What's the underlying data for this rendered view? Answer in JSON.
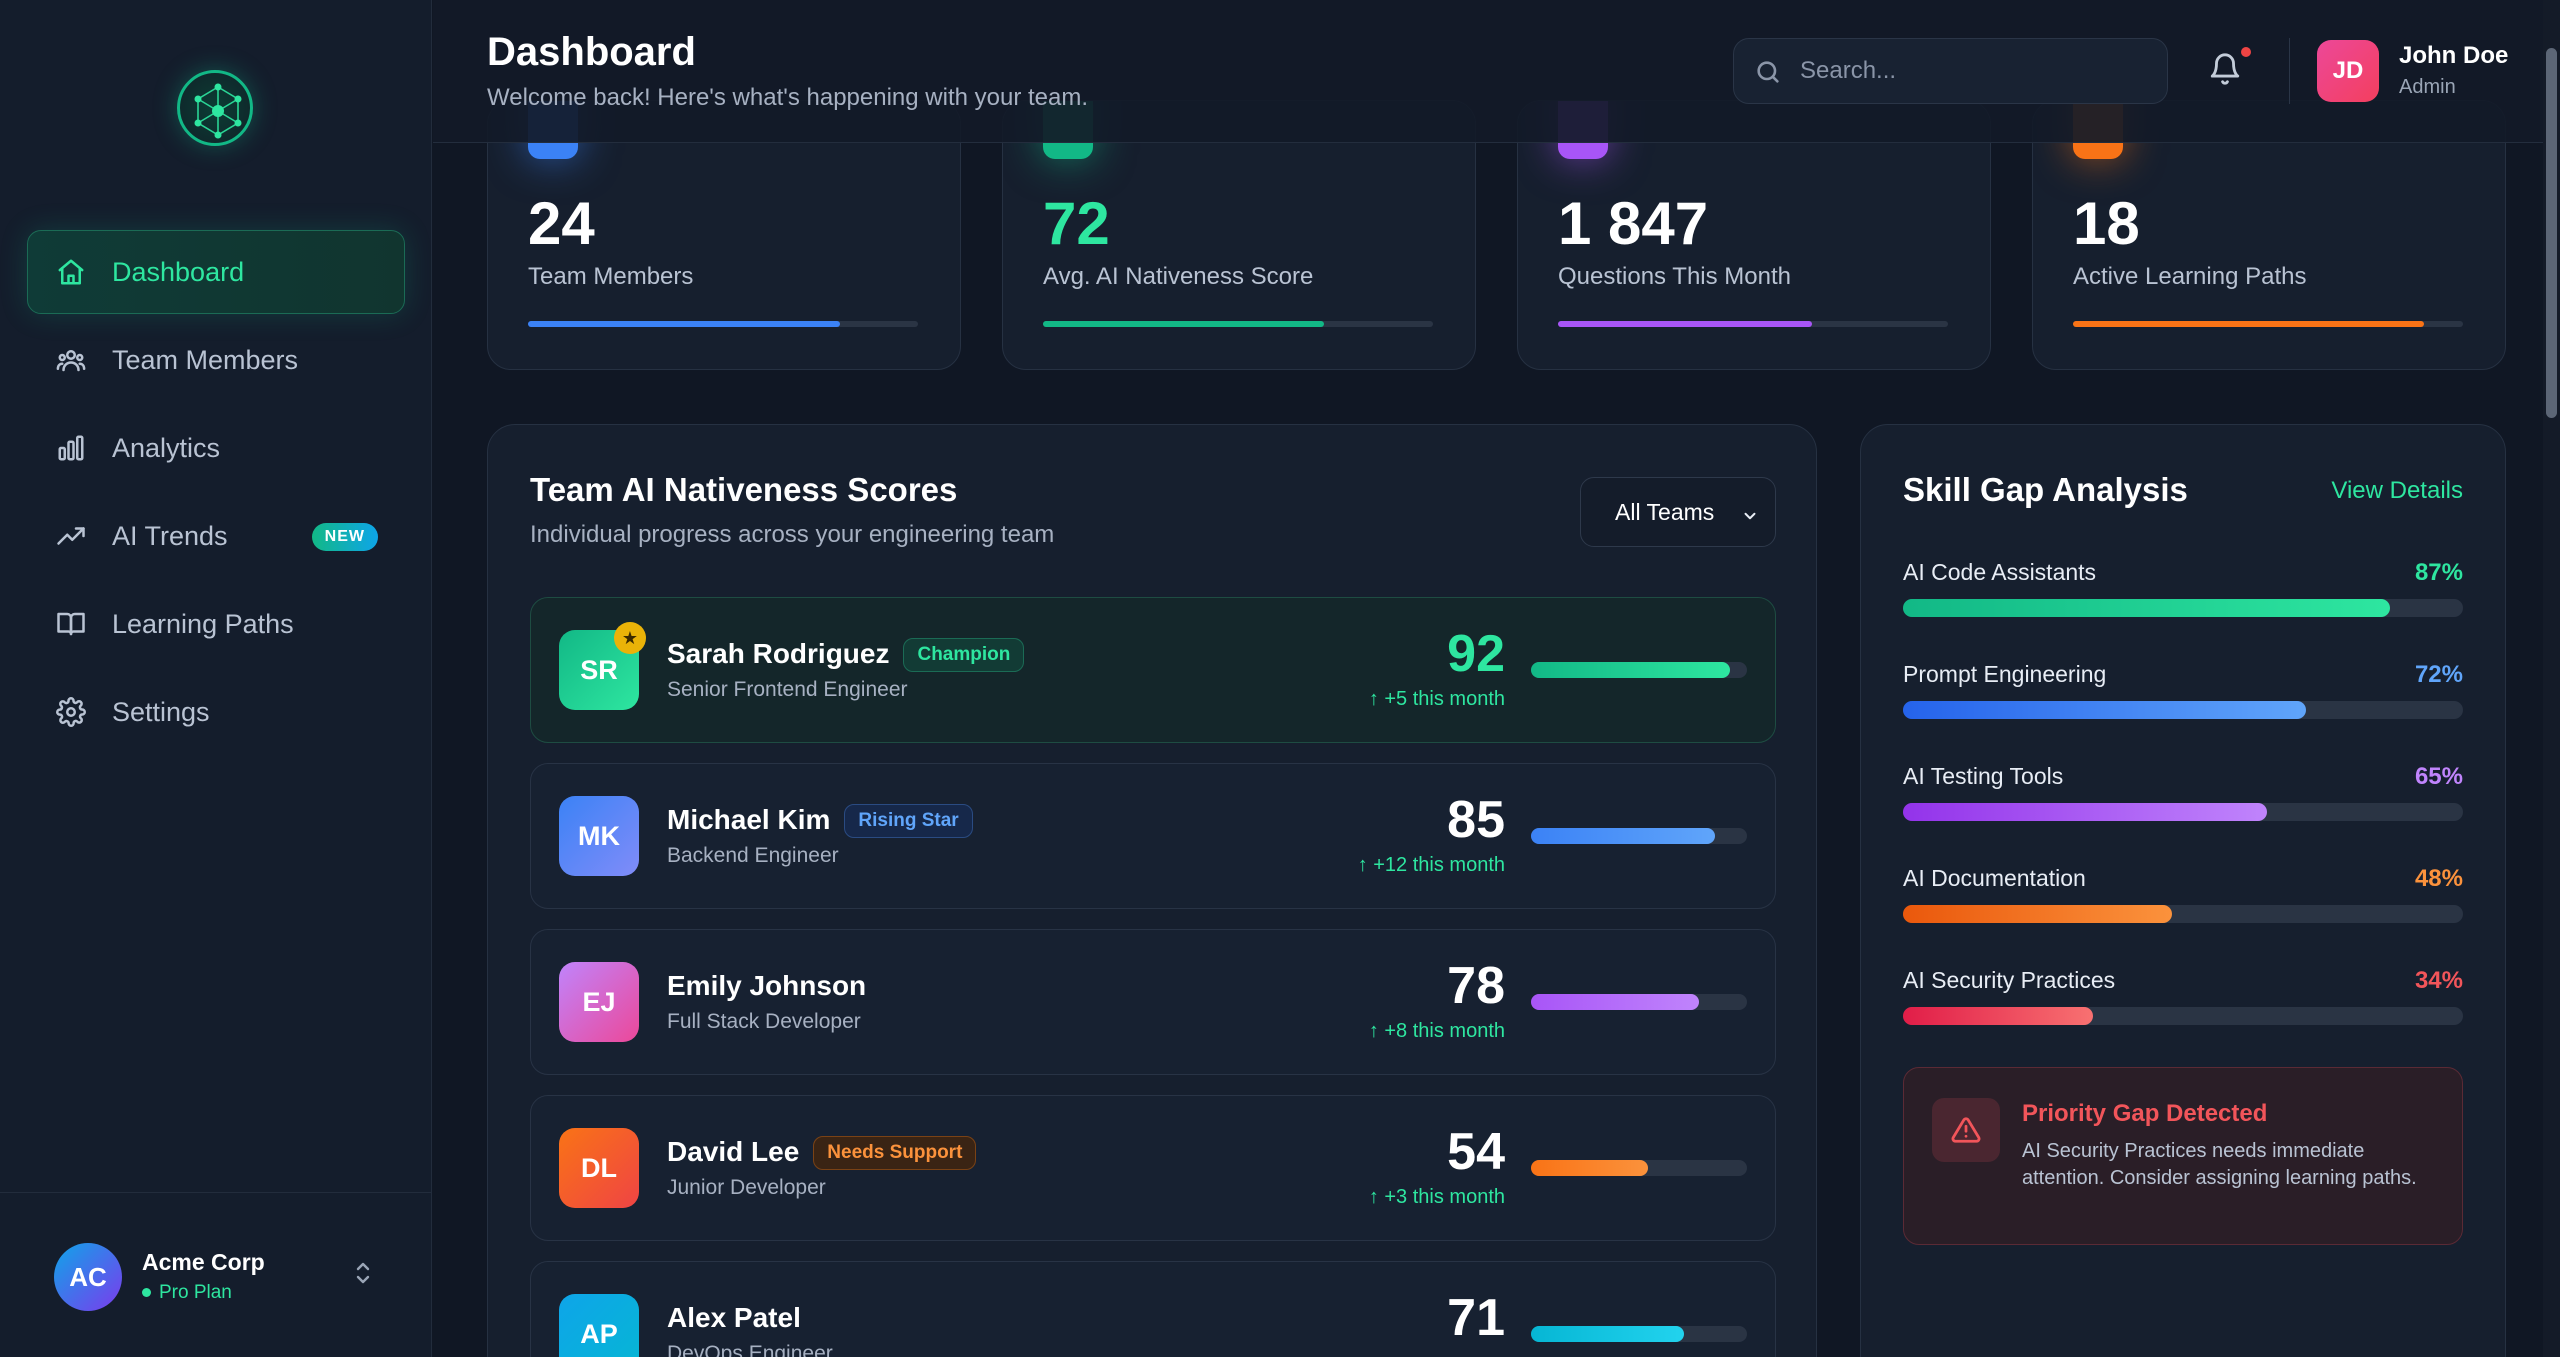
{
  "sidebar": {
    "items": [
      {
        "label": "Dashboard",
        "icon": "home-icon"
      },
      {
        "label": "Team Members",
        "icon": "users-icon"
      },
      {
        "label": "Analytics",
        "icon": "bar-chart-icon"
      },
      {
        "label": "AI Trends",
        "icon": "trending-up-icon",
        "badge": "NEW"
      },
      {
        "label": "Learning Paths",
        "icon": "book-open-icon"
      },
      {
        "label": "Settings",
        "icon": "gear-icon"
      }
    ],
    "org": {
      "initials": "AC",
      "name": "Acme Corp",
      "plan": "Pro Plan"
    }
  },
  "header": {
    "title": "Dashboard",
    "subtitle": "Welcome back! Here's what's happening with your team.",
    "search_placeholder": "Search...",
    "user": {
      "initials": "JD",
      "name": "John Doe",
      "role": "Admin"
    }
  },
  "stats": [
    {
      "value": "24",
      "label": "Team Members",
      "progress": 0.8,
      "color": "#3b82f6"
    },
    {
      "value": "72",
      "label": "Avg. AI Nativeness Score",
      "progress": 0.72,
      "color": "#12b886"
    },
    {
      "value": "1 847",
      "label": "Questions This Month",
      "progress": 0.65,
      "color": "#a855f7"
    },
    {
      "value": "18",
      "label": "Active Learning Paths",
      "progress": 0.9,
      "color": "#f97316"
    }
  ],
  "team_scores": {
    "title": "Team AI Nativeness Scores",
    "subtitle": "Individual progress across your engineering team",
    "filter": "All Teams",
    "members": [
      {
        "initials": "SR",
        "name": "Sarah Rodriguez",
        "tag": "Champion",
        "role": "Senior Frontend Engineer",
        "score": "92",
        "delta": "+5 this month"
      },
      {
        "initials": "MK",
        "name": "Michael Kim",
        "tag": "Rising Star",
        "role": "Backend Engineer",
        "score": "85",
        "delta": "+12 this month"
      },
      {
        "initials": "EJ",
        "name": "Emily Johnson",
        "tag": "",
        "role": "Full Stack Developer",
        "score": "78",
        "delta": "+8 this month"
      },
      {
        "initials": "DL",
        "name": "David Lee",
        "tag": "Needs Support",
        "role": "Junior Developer",
        "score": "54",
        "delta": "+3 this month"
      },
      {
        "initials": "AP",
        "name": "Alex Patel",
        "tag": "",
        "role": "DevOps Engineer",
        "score": "71",
        "delta": ""
      }
    ]
  },
  "skill_gap": {
    "title": "Skill Gap Analysis",
    "link": "View Details",
    "skills": [
      {
        "label": "AI Code Assistants",
        "pct": "87%",
        "value": 87
      },
      {
        "label": "Prompt Engineering",
        "pct": "72%",
        "value": 72
      },
      {
        "label": "AI Testing Tools",
        "pct": "65%",
        "value": 65
      },
      {
        "label": "AI Documentation",
        "pct": "48%",
        "value": 48
      },
      {
        "label": "AI Security Practices",
        "pct": "34%",
        "value": 34
      }
    ],
    "alert": {
      "title": "Priority Gap Detected",
      "text": "AI Security Practices needs immediate attention. Consider assigning learning paths."
    }
  }
}
